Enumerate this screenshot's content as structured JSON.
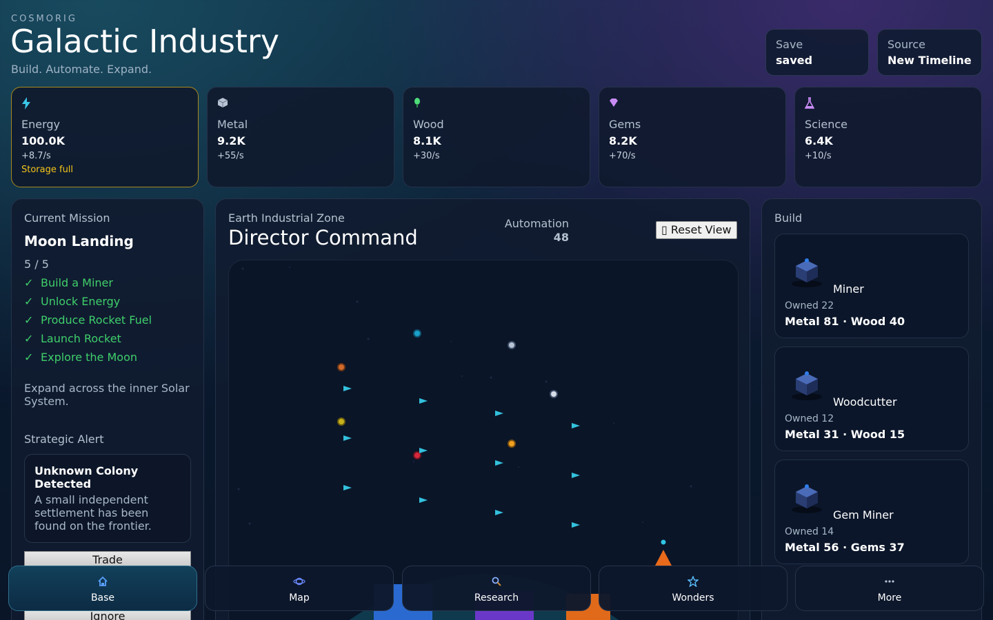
{
  "brand": "COSMORIG",
  "title": "Galactic Industry",
  "subtitle": "Build. Automate. Expand.",
  "header_cards": [
    {
      "label": "Save",
      "value": "saved"
    },
    {
      "label": "Source",
      "value": "New Timeline"
    }
  ],
  "resources": [
    {
      "icon": "lightning-icon",
      "name": "Energy",
      "amount": "100.0K",
      "rate": "+8.7/s",
      "warning": "Storage full"
    },
    {
      "icon": "metal-cube-icon",
      "name": "Metal",
      "amount": "9.2K",
      "rate": "+55/s"
    },
    {
      "icon": "tree-icon",
      "name": "Wood",
      "amount": "8.1K",
      "rate": "+30/s"
    },
    {
      "icon": "gem-icon",
      "name": "Gems",
      "amount": "8.2K",
      "rate": "+70/s"
    },
    {
      "icon": "flask-icon",
      "name": "Science",
      "amount": "6.4K",
      "rate": "+10/s"
    }
  ],
  "mission": {
    "label": "Current Mission",
    "name": "Moon Landing",
    "progress": "5 / 5",
    "tasks": [
      "Build a Miner",
      "Unlock Energy",
      "Produce Rocket Fuel",
      "Launch Rocket",
      "Explore the Moon"
    ],
    "check": "✓",
    "description": "Expand across the inner Solar System."
  },
  "alert": {
    "label": "Strategic Alert",
    "title": "Unknown Colony Detected",
    "body": "A small independent settlement has been found on the frontier.",
    "trade_label": "Trade",
    "ignore_label": "Ignore"
  },
  "zone": {
    "name": "Earth Industrial Zone",
    "command": "Director Command",
    "automation_label": "Automation",
    "automation_value": "48",
    "reset_label": "▯ Reset View"
  },
  "build": {
    "label": "Build",
    "items": [
      {
        "name": "Miner",
        "owned": "Owned 22",
        "cost": "Metal 81 · Wood 40"
      },
      {
        "name": "Woodcutter",
        "owned": "Owned 12",
        "cost": "Metal 31 · Wood 15"
      },
      {
        "name": "Gem Miner",
        "owned": "Owned 14",
        "cost": "Metal 56 · Gems 37"
      }
    ]
  },
  "nav": [
    {
      "icon": "home-icon",
      "label": "Base",
      "active": true
    },
    {
      "icon": "planet-icon",
      "label": "Map"
    },
    {
      "icon": "magnifier-icon",
      "label": "Research"
    },
    {
      "icon": "star-icon",
      "label": "Wonders"
    },
    {
      "icon": "dots-icon",
      "label": "More"
    }
  ],
  "colors": {
    "accent": "#2fb5d6",
    "success": "#3fcf6a",
    "warning": "#f5c518",
    "background": "#0b1a30"
  }
}
